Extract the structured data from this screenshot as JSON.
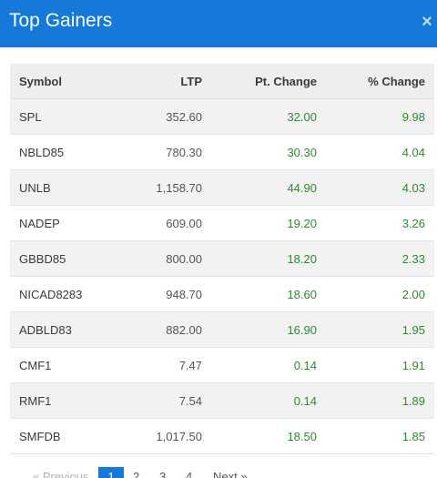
{
  "header": {
    "title": "Top Gainers",
    "close_label": "×"
  },
  "table": {
    "columns": [
      "Symbol",
      "LTP",
      "Pt. Change",
      "% Change"
    ],
    "rows": [
      {
        "symbol": "SPL",
        "ltp": "352.60",
        "pt_change": "32.00",
        "pct_change": "9.98"
      },
      {
        "symbol": "NBLD85",
        "ltp": "780.30",
        "pt_change": "30.30",
        "pct_change": "4.04"
      },
      {
        "symbol": "UNLB",
        "ltp": "1,158.70",
        "pt_change": "44.90",
        "pct_change": "4.03"
      },
      {
        "symbol": "NADEP",
        "ltp": "609.00",
        "pt_change": "19.20",
        "pct_change": "3.26"
      },
      {
        "symbol": "GBBD85",
        "ltp": "800.00",
        "pt_change": "18.20",
        "pct_change": "2.33"
      },
      {
        "symbol": "NICAD8283",
        "ltp": "948.70",
        "pt_change": "18.60",
        "pct_change": "2.00"
      },
      {
        "symbol": "ADBLD83",
        "ltp": "882.00",
        "pt_change": "16.90",
        "pct_change": "1.95"
      },
      {
        "symbol": "CMF1",
        "ltp": "7.47",
        "pt_change": "0.14",
        "pct_change": "1.91"
      },
      {
        "symbol": "RMF1",
        "ltp": "7.54",
        "pt_change": "0.14",
        "pct_change": "1.89"
      },
      {
        "symbol": "SMFDB",
        "ltp": "1,017.50",
        "pt_change": "18.50",
        "pct_change": "1.85"
      }
    ]
  },
  "pagination": {
    "previous_label": "« Previous",
    "pages": [
      "1",
      "2",
      "3",
      "4"
    ],
    "current_page": "1",
    "next_label": "Next »"
  },
  "colors": {
    "header_bg": "#1479d8",
    "gain_text": "#2e8b2e",
    "active_page_bg": "#1479d8"
  }
}
